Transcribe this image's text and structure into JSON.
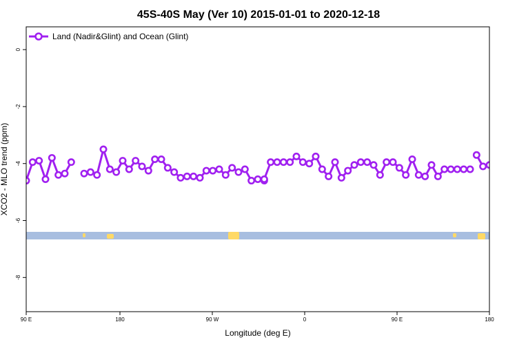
{
  "chart_data": {
    "type": "line",
    "title": "45S-40S May (Ver 10)   2015-01-01 to 2020-12-18",
    "xlabel": "Longitude (deg E)",
    "ylabel": "XCO2 - MLO trend (ppm)",
    "xlim": [
      90,
      450
    ],
    "ylim": [
      -9.2,
      0.8
    ],
    "xticks": [
      {
        "value": 90,
        "label": "90 E"
      },
      {
        "value": 180,
        "label": "180"
      },
      {
        "value": 270,
        "label": "90 W"
      },
      {
        "value": 360,
        "label": "0"
      },
      {
        "value": 450,
        "label": "90 E"
      },
      {
        "value": 540,
        "label": "180"
      }
    ],
    "yticks": [
      {
        "value": 0,
        "label": "0"
      },
      {
        "value": -2,
        "label": "-2"
      },
      {
        "value": -4,
        "label": "-4"
      },
      {
        "value": -6,
        "label": "-6"
      },
      {
        "value": -8,
        "label": "-8"
      }
    ],
    "grid": false,
    "legend_position": "top-left",
    "colors": {
      "series": "#a020f0",
      "ocean": "#a8bee0",
      "land": "#ffd966"
    },
    "series": [
      {
        "name": "Land (Nadir&Glint) and Ocean (Glint)",
        "segments": [
          {
            "x": [
              90,
              95,
              100,
              105,
              110,
              115,
              120,
              125
            ],
            "y": [
              -4.6,
              -3.95,
              -3.9,
              -4.55,
              -3.8,
              -4.4,
              -4.35,
              -3.95
            ]
          },
          {
            "x": [
              135,
              140,
              145,
              150,
              155,
              160,
              165,
              170,
              175,
              180,
              185,
              190,
              195,
              200,
              205,
              210,
              215,
              220,
              225,
              230,
              235,
              240,
              245,
              250,
              255,
              260,
              265,
              270,
              275
            ],
            "y": [
              -4.35,
              -4.3,
              -4.4,
              -3.5,
              -4.2,
              -4.3,
              -3.9,
              -4.2,
              -3.9,
              -4.1,
              -4.25,
              -3.85,
              -3.85,
              -4.15,
              -4.3,
              -4.5,
              -4.45,
              -4.45,
              -4.5,
              -4.25,
              -4.25,
              -4.2,
              -4.4,
              -4.15,
              -4.3,
              -4.2,
              -4.6,
              -4.55,
              -4.6
            ]
          },
          {
            "x": [
              275,
              280,
              285,
              290,
              295,
              300,
              305,
              310,
              315,
              320,
              325,
              330,
              335,
              340,
              345,
              350,
              355,
              360,
              365,
              370,
              375,
              380,
              385,
              390,
              395,
              400,
              405,
              410,
              415,
              420,
              425,
              430,
              435
            ],
            "y": [
              -4.55,
              -3.95,
              -3.95,
              -3.95,
              -3.95,
              -3.75,
              -3.95,
              -4.0,
              -3.75,
              -4.2,
              -4.45,
              -3.95,
              -4.5,
              -4.25,
              -4.05,
              -3.95,
              -3.95,
              -4.05,
              -4.4,
              -3.95,
              -3.95,
              -4.15,
              -4.4,
              -3.85,
              -4.4,
              -4.45,
              -4.05,
              -4.45,
              -4.2,
              -4.2,
              -4.2,
              -4.2,
              -4.2
            ]
          },
          {
            "x": [
              440,
              445,
              450,
              455,
              460,
              465,
              470,
              475,
              480,
              485,
              490,
              495
            ],
            "y": [
              -3.7,
              -4.1,
              -4.05,
              -3.95,
              -4.6,
              -3.95,
              -3.9,
              -4.55,
              -3.8,
              -4.4,
              -4.35,
              -3.95
            ]
          },
          {
            "x": [
              505,
              510,
              515,
              520,
              525,
              530,
              535,
              540
            ],
            "y": [
              -4.35,
              -4.3,
              -4.4,
              -3.5,
              -4.2,
              -4.3,
              -3.9,
              -4.1
            ]
          }
        ]
      }
    ]
  }
}
